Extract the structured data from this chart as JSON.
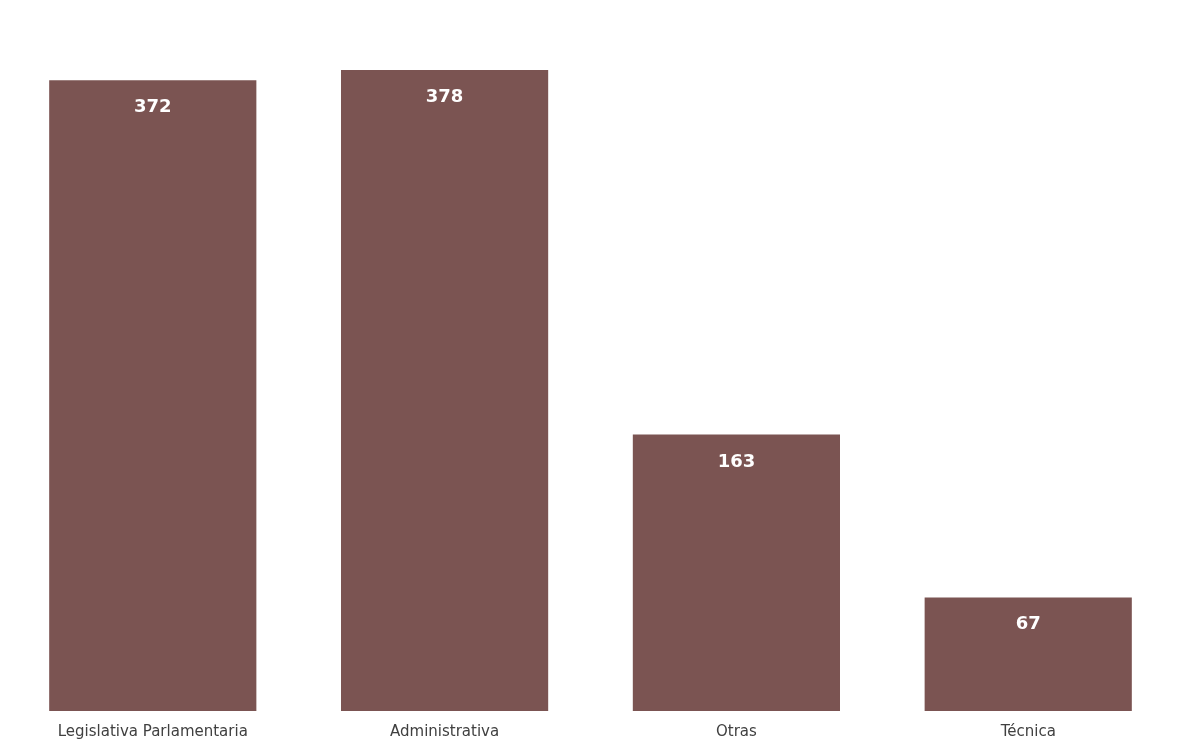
{
  "chart_data": {
    "type": "bar",
    "categories": [
      "Legislativa Parlamentaria",
      "Administrativa",
      "Otras",
      "Técnica"
    ],
    "values": [
      372,
      378,
      163,
      67
    ],
    "color": "#7b5452",
    "data_labels": true,
    "grid": false
  }
}
